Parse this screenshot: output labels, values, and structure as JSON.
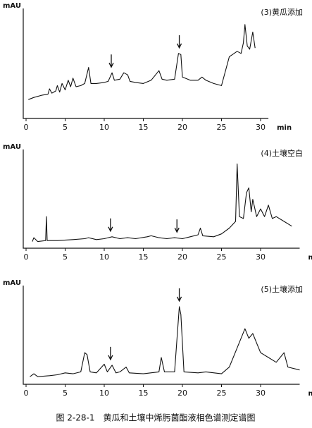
{
  "caption": "图 2-28-1　黄瓜和土壤中烯肟菌酯液相色谱测定谱图",
  "chart_data": [
    {
      "type": "line",
      "title": "(3)黄瓜添加",
      "y_label": "mAU",
      "x_label": "min",
      "xlim": [
        0,
        31
      ],
      "ylim": [
        0,
        100
      ],
      "xticks": [
        0,
        5,
        10,
        15,
        20,
        25,
        30
      ],
      "arrows": [
        10.9,
        19.6
      ],
      "x": [
        0.3,
        1,
        2,
        2.8,
        3,
        3.3,
        3.8,
        4,
        4.3,
        4.6,
        5,
        5.4,
        5.7,
        6,
        6.4,
        7,
        7.5,
        8,
        8.3,
        9,
        10,
        10.5,
        11,
        11.3,
        12,
        12.5,
        13,
        13.3,
        14,
        15,
        16,
        17,
        17.4,
        18,
        19,
        19.5,
        19.8,
        20,
        21,
        22,
        22.5,
        23,
        24,
        25,
        26,
        27,
        27.5,
        27.8,
        28,
        28.3,
        28.6,
        29,
        29.3
      ],
      "series": [
        {
          "name": "(3)",
          "color": "#111111",
          "values": [
            15,
            17,
            19,
            20,
            25,
            21,
            23,
            28,
            22,
            30,
            24,
            33,
            27,
            35,
            27,
            28,
            30,
            45,
            30,
            30,
            31,
            32,
            40,
            33,
            34,
            40,
            38,
            32,
            31,
            30,
            33,
            42,
            34,
            33,
            34,
            58,
            57,
            36,
            33,
            33,
            36,
            33,
            30,
            28,
            55,
            60,
            58,
            68,
            85,
            65,
            62,
            78,
            63
          ]
        }
      ]
    },
    {
      "type": "line",
      "title": "(4)土壤空白",
      "y_label": "mAU",
      "x_label": "min",
      "xlim": [
        0,
        35
      ],
      "ylim": [
        0,
        100
      ],
      "xticks": [
        0,
        5,
        10,
        15,
        20,
        25,
        30
      ],
      "arrows": [
        10.8,
        19.3
      ],
      "x": [
        0.8,
        1,
        1.5,
        2.5,
        2.6,
        2.7,
        4,
        6,
        7.5,
        8,
        9,
        10,
        10.5,
        11,
        12,
        13,
        14,
        15.5,
        16,
        17,
        18,
        19,
        20,
        21,
        22,
        22.3,
        22.6,
        24,
        25,
        26,
        26.8,
        27,
        27.3,
        27.8,
        28.2,
        28.5,
        28.8,
        29,
        29.5,
        30,
        30.5,
        31,
        31.5,
        32,
        33,
        34
      ],
      "series": [
        {
          "name": "(4)",
          "color": "#111111",
          "values": [
            4,
            8,
            4,
            5,
            30,
            5,
            5,
            6,
            7,
            8,
            6,
            7,
            8,
            9,
            7,
            8,
            7,
            9,
            10,
            8,
            7,
            8,
            7,
            9,
            11,
            18,
            10,
            9,
            12,
            18,
            25,
            85,
            30,
            28,
            55,
            60,
            35,
            48,
            30,
            38,
            30,
            42,
            28,
            30,
            25,
            20
          ]
        }
      ]
    },
    {
      "type": "line",
      "title": "(5)土壤添加",
      "y_label": "mAU",
      "x_label": "min",
      "xlim": [
        0,
        35
      ],
      "ylim": [
        0,
        100
      ],
      "xticks": [
        0,
        5,
        10,
        15,
        20,
        25,
        30
      ],
      "arrows": [
        10.8,
        19.6
      ],
      "x": [
        0.5,
        1,
        1.5,
        3,
        4,
        5,
        6,
        7,
        7.5,
        7.8,
        8.2,
        9,
        10,
        10.4,
        11,
        11.5,
        12,
        12.8,
        13.2,
        15,
        17,
        17.3,
        17.7,
        19,
        19.6,
        19.8,
        20.2,
        22,
        23,
        25,
        26,
        27,
        28,
        28.5,
        29,
        29.5,
        30,
        31,
        32,
        33,
        33.5,
        35
      ],
      "series": [
        {
          "name": "(5)",
          "color": "#111111",
          "values": [
            5,
            8,
            5,
            6,
            7,
            9,
            8,
            10,
            30,
            28,
            10,
            9,
            18,
            10,
            17,
            9,
            10,
            15,
            9,
            8,
            10,
            25,
            10,
            10,
            78,
            70,
            10,
            9,
            10,
            8,
            15,
            35,
            55,
            45,
            50,
            40,
            30,
            25,
            20,
            30,
            15,
            12
          ]
        }
      ]
    }
  ]
}
